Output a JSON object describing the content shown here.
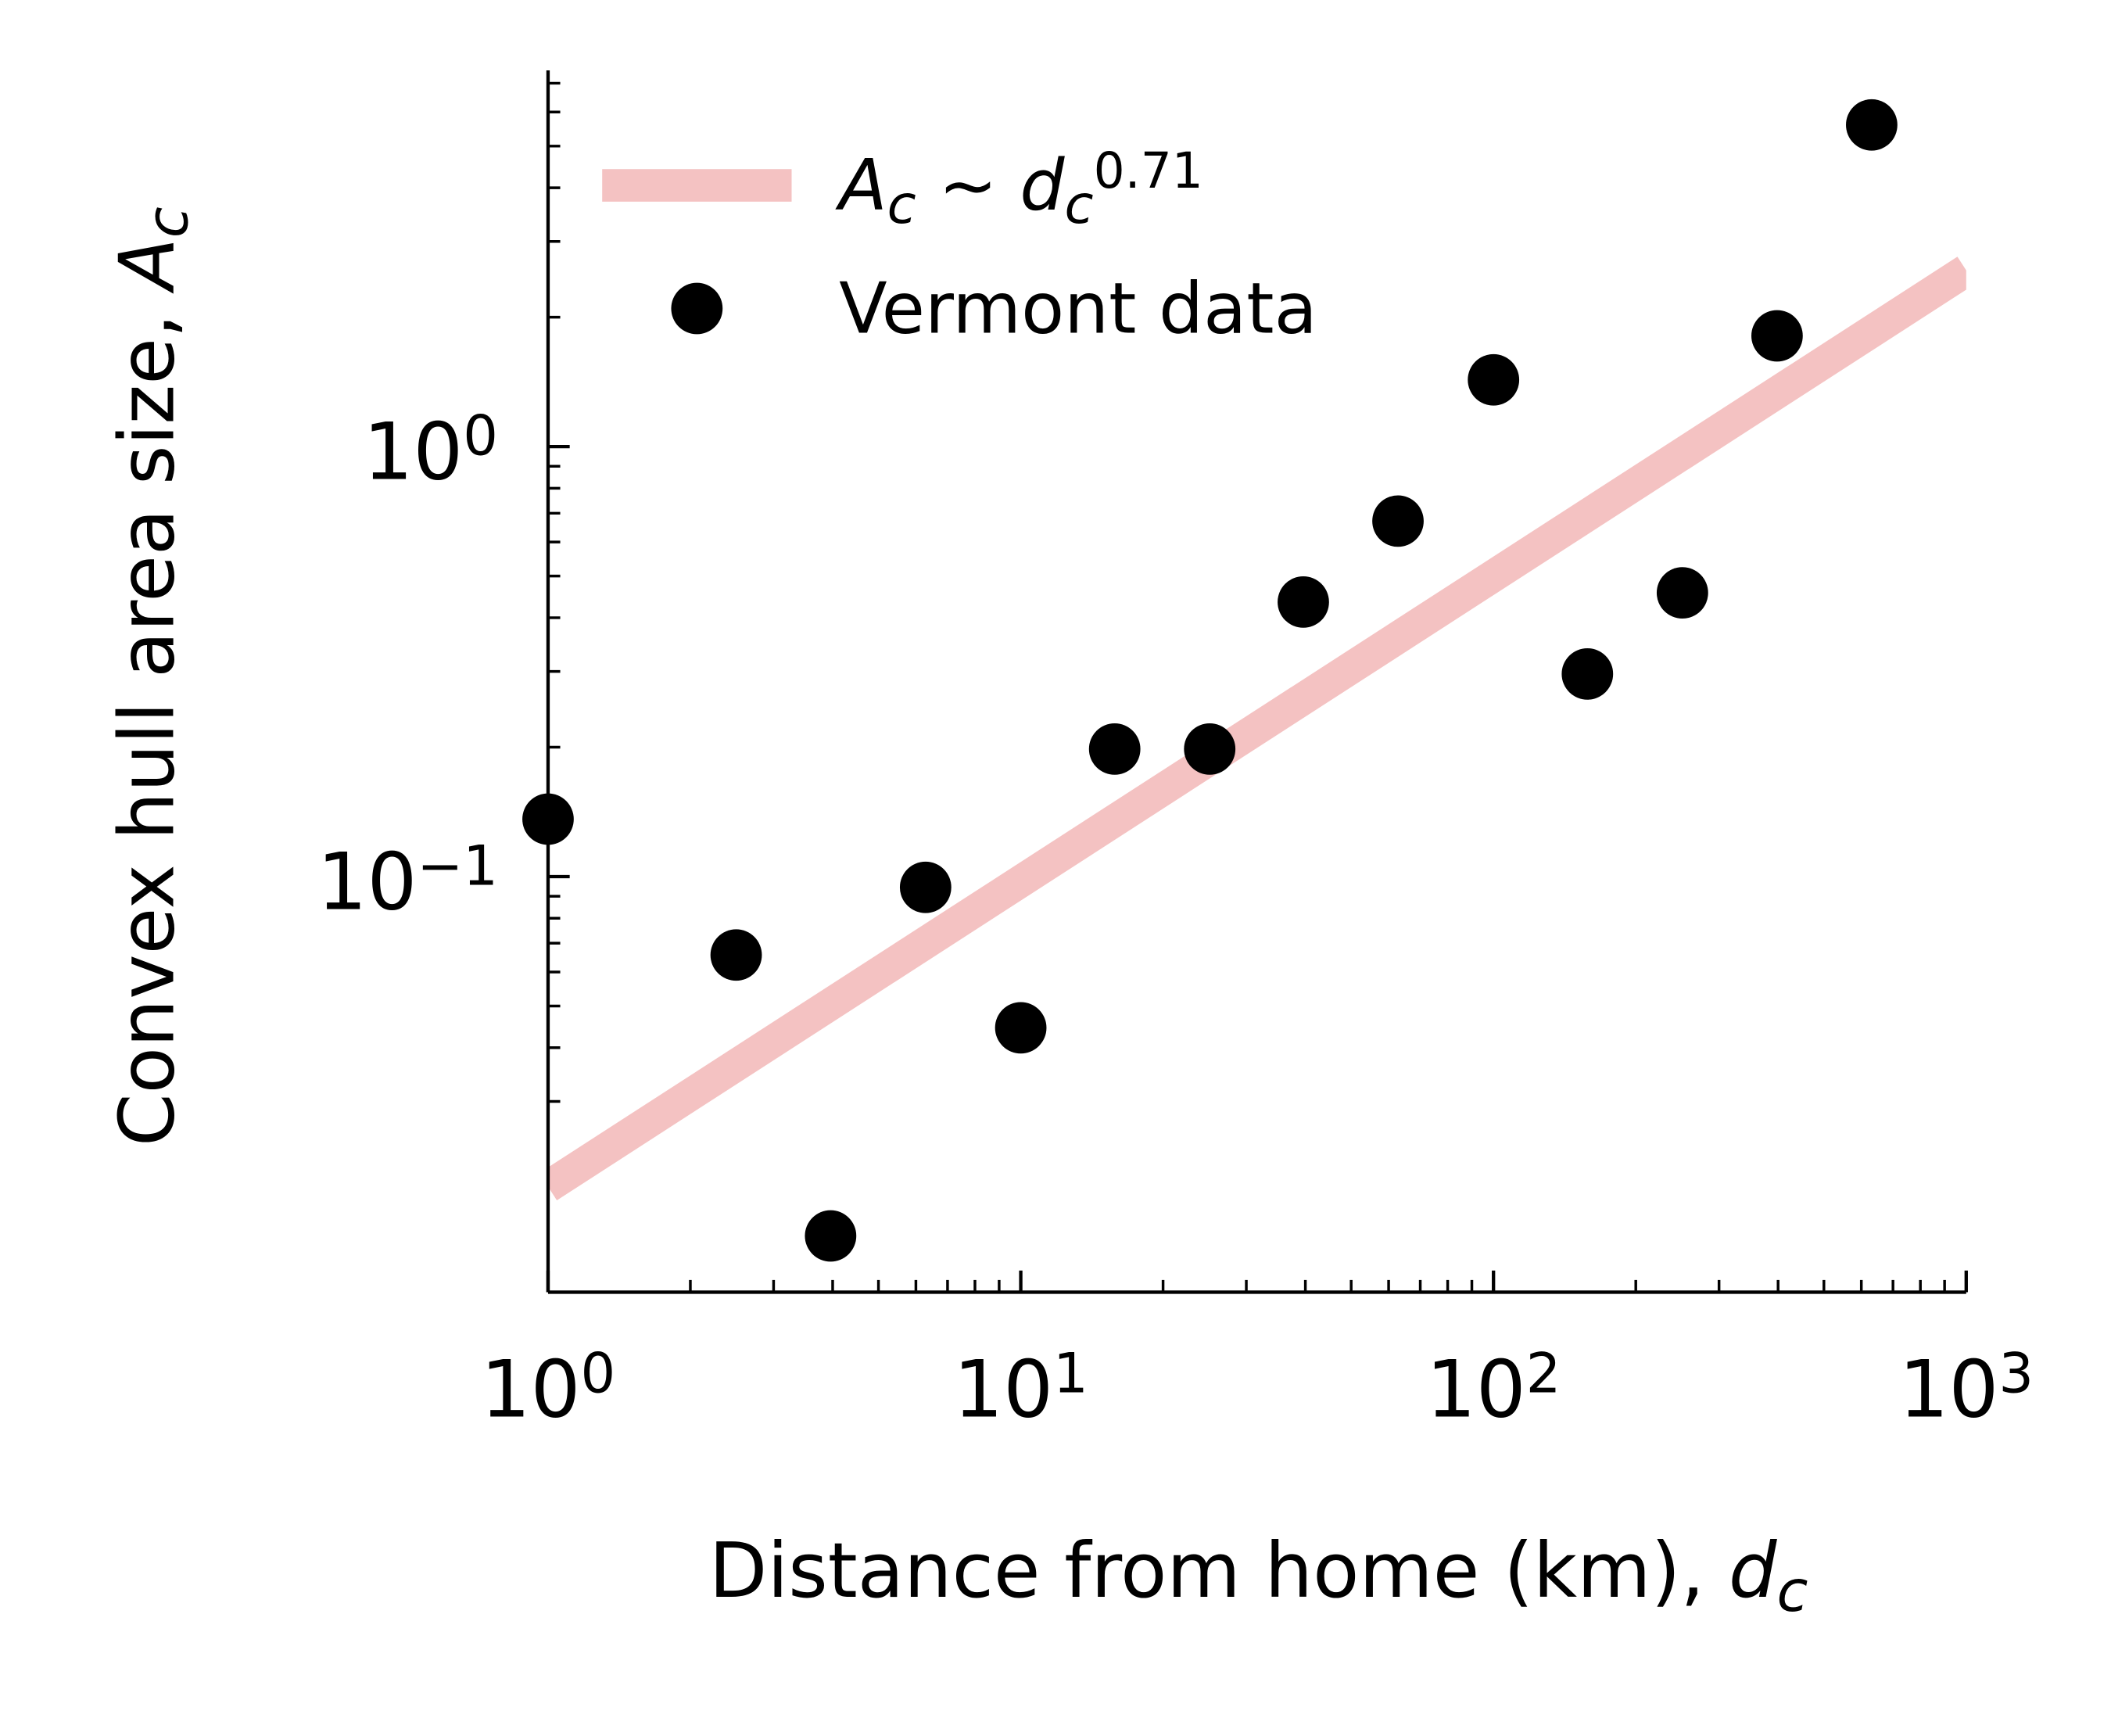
{
  "chart_data": {
    "type": "scatter",
    "xlabel": "Distance from home (km), d_c",
    "ylabel": "Convex hull area size, A_c",
    "log_x": true,
    "log_y": true,
    "minor_ticks": true,
    "legend": "upper left",
    "xlim": [
      1,
      1000
    ],
    "ylim": [
      0.0108,
      7.5
    ],
    "xticks": [
      {
        "value": 1,
        "label": "10^0"
      },
      {
        "value": 10,
        "label": "10^1"
      },
      {
        "value": 100,
        "label": "10^2"
      },
      {
        "value": 1000,
        "label": "10^3"
      }
    ],
    "yticks": [
      {
        "value": 0.1,
        "label": "10^−1"
      },
      {
        "value": 1,
        "label": "10^0"
      }
    ],
    "series": [
      {
        "name": "A_c ~ d_c^0.71",
        "type": "line",
        "color": "#f4c2c2",
        "x": [
          1,
          1000
        ],
        "values": [
          0.019,
          2.57
        ]
      },
      {
        "name": "Vermont data",
        "type": "scatter",
        "color": "#000000",
        "x": [
          1,
          2.5,
          3.96,
          6.29,
          10,
          15.8,
          25.1,
          39.6,
          62.8,
          100,
          158,
          251,
          398,
          631
        ],
        "values": [
          0.136,
          0.0657,
          0.0146,
          0.0944,
          0.0445,
          0.198,
          0.198,
          0.435,
          0.671,
          1.43,
          0.296,
          0.457,
          1.81,
          5.6
        ]
      }
    ]
  }
}
